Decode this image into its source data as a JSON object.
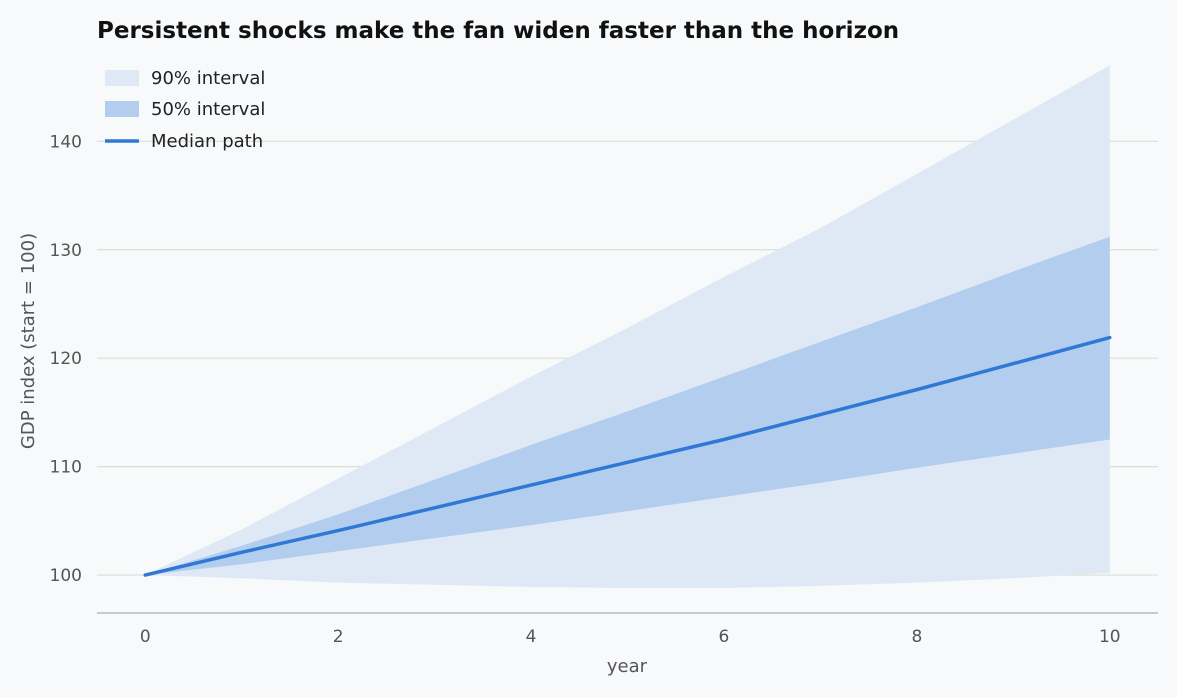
{
  "chart_data": {
    "type": "area",
    "title": "Persistent shocks make the fan widen faster than the horizon",
    "xlabel": "year",
    "ylabel": "GDP index (start = 100)",
    "xlim": [
      -0.5,
      10.5
    ],
    "ylim": [
      96.5,
      147.5
    ],
    "x_ticks": [
      0,
      2,
      4,
      6,
      8,
      10
    ],
    "y_ticks": [
      100,
      110,
      120,
      130,
      140
    ],
    "grid": "horizontal",
    "legend_position": "top-left",
    "x": [
      0,
      1,
      2,
      3,
      4,
      5,
      6,
      7,
      8,
      9,
      10
    ],
    "series": [
      {
        "name": "90% interval",
        "role": "band",
        "color": "#dfe9f6",
        "lower": [
          100,
          99.7,
          99.3,
          99.1,
          98.9,
          98.8,
          98.8,
          99.0,
          99.3,
          99.7,
          100.2
        ],
        "upper": [
          100,
          104.2,
          108.9,
          113.6,
          118.3,
          122.8,
          127.5,
          132.0,
          137.0,
          142.0,
          147.0
        ]
      },
      {
        "name": "50% interval",
        "role": "band",
        "color": "#b3cdef",
        "lower": [
          100,
          101.0,
          102.2,
          103.4,
          104.6,
          105.9,
          107.2,
          108.5,
          109.9,
          111.2,
          112.5
        ],
        "upper": [
          100,
          102.7,
          105.6,
          108.8,
          112.0,
          115.1,
          118.3,
          121.5,
          124.7,
          128.0,
          131.2
        ]
      },
      {
        "name": "Median path",
        "role": "line",
        "color": "#2f78d4",
        "values": [
          100,
          102.1,
          104.1,
          106.2,
          108.3,
          110.4,
          112.5,
          114.8,
          117.1,
          119.5,
          121.9
        ]
      }
    ]
  }
}
